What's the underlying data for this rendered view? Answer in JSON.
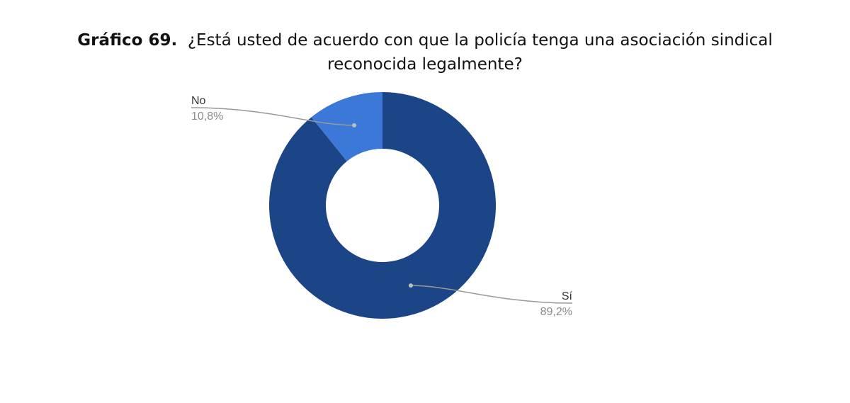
{
  "chart_data": {
    "type": "pie",
    "title_label": "Gráfico 69.",
    "title_line1": "¿Está usted de acuerdo con que la policía tenga una asociación sindical",
    "title_line2": "reconocida legalmente?",
    "donut": true,
    "slices": [
      {
        "label": "Sí",
        "value": 89.2,
        "value_text": "89,2%",
        "color": "#1c4587"
      },
      {
        "label": "No",
        "value": 10.8,
        "value_text": "10,8%",
        "color": "#3c78d8"
      }
    ],
    "leader_line_color": "#999999",
    "legend": "none"
  }
}
